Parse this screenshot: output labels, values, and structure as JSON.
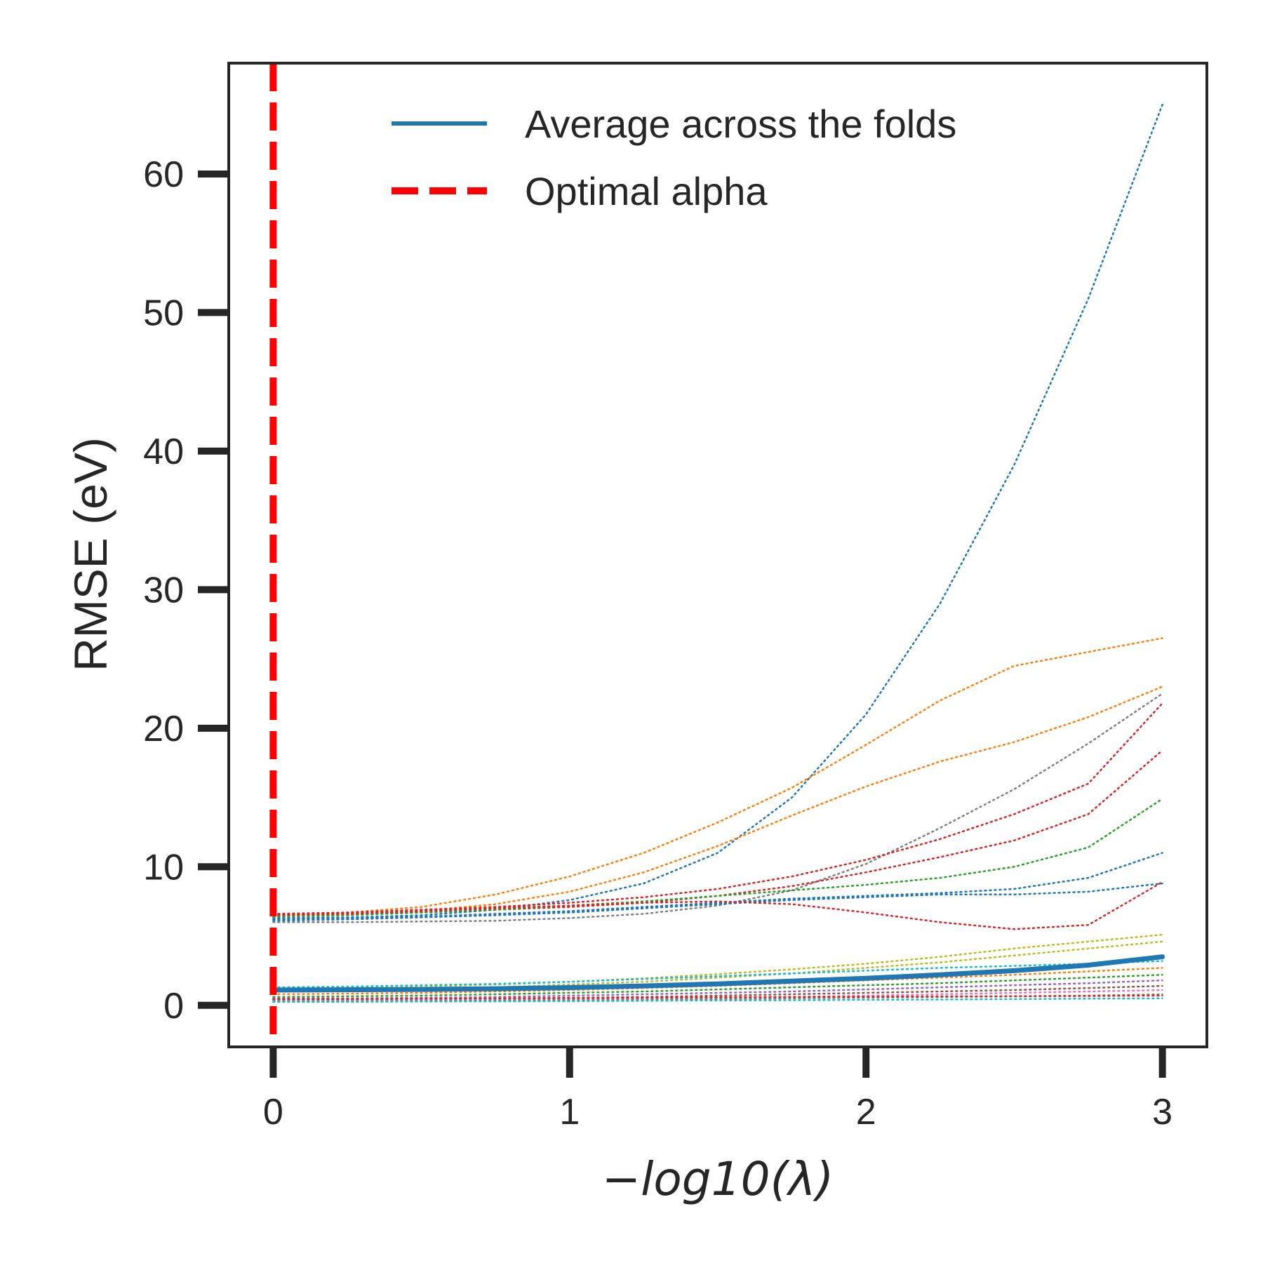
{
  "chart_data": {
    "type": "line",
    "xlabel": "−log10(λ)",
    "ylabel": "RMSE (eV)",
    "xlim": [
      -0.15,
      3.15
    ],
    "ylim": [
      -3,
      68
    ],
    "xticks": [
      0,
      1,
      2,
      3
    ],
    "yticks": [
      0,
      10,
      20,
      30,
      40,
      50,
      60
    ],
    "grid": false,
    "legend_position": "top-center",
    "legend": [
      {
        "label": "Average across the folds",
        "color": "#1f77b4",
        "style": "solid"
      },
      {
        "label": "Optimal alpha",
        "color": "#ff0000",
        "style": "dashed"
      }
    ],
    "optimal_alpha_x": 0,
    "x": [
      0,
      0.25,
      0.5,
      0.75,
      1.0,
      1.25,
      1.5,
      1.75,
      2.0,
      2.25,
      2.5,
      2.75,
      3.0
    ],
    "average": {
      "color": "#1f77b4",
      "values": [
        1.1,
        1.12,
        1.15,
        1.2,
        1.28,
        1.4,
        1.55,
        1.75,
        1.95,
        2.2,
        2.5,
        2.9,
        3.5
      ]
    },
    "folds": [
      {
        "color": "#1f77b4",
        "values": [
          6.3,
          6.35,
          6.5,
          6.9,
          7.6,
          8.8,
          11.0,
          15.0,
          21.0,
          29.0,
          39.0,
          51.0,
          65.0
        ]
      },
      {
        "color": "#ff7f0e",
        "values": [
          6.5,
          6.7,
          7.1,
          8.0,
          9.3,
          11.0,
          13.2,
          15.7,
          18.8,
          22.0,
          24.5,
          25.5,
          26.5
        ]
      },
      {
        "color": "#ff7f0e",
        "values": [
          6.4,
          6.5,
          6.8,
          7.3,
          8.2,
          9.6,
          11.5,
          13.7,
          15.8,
          17.6,
          19.0,
          20.8,
          23.0
        ]
      },
      {
        "color": "#7f7f7f",
        "values": [
          6.0,
          6.0,
          6.05,
          6.1,
          6.3,
          6.6,
          7.2,
          8.3,
          10.2,
          12.8,
          15.6,
          18.9,
          22.5
        ]
      },
      {
        "color": "#d62728",
        "values": [
          6.6,
          6.7,
          6.9,
          7.1,
          7.4,
          7.8,
          8.4,
          9.3,
          10.5,
          12.0,
          13.8,
          16.0,
          21.8
        ]
      },
      {
        "color": "#d62728",
        "values": [
          6.5,
          6.6,
          6.7,
          6.9,
          7.1,
          7.4,
          7.9,
          8.6,
          9.6,
          10.7,
          11.9,
          13.8,
          18.4
        ]
      },
      {
        "color": "#2ca02c",
        "values": [
          6.4,
          6.5,
          6.7,
          6.9,
          7.2,
          7.5,
          7.9,
          8.3,
          8.7,
          9.2,
          10.0,
          11.4,
          14.9
        ]
      },
      {
        "color": "#1f77b4",
        "values": [
          6.2,
          6.3,
          6.4,
          6.6,
          6.8,
          7.1,
          7.4,
          7.7,
          7.9,
          8.1,
          8.4,
          9.2,
          11.0
        ]
      },
      {
        "color": "#1f77b4",
        "values": [
          6.1,
          6.2,
          6.35,
          6.5,
          6.7,
          7.0,
          7.3,
          7.6,
          7.8,
          8.0,
          8.0,
          8.2,
          8.8
        ]
      },
      {
        "color": "#d62728",
        "values": [
          6.5,
          6.6,
          6.8,
          7.0,
          7.2,
          7.4,
          7.5,
          7.3,
          6.7,
          6.0,
          5.5,
          5.8,
          8.9
        ]
      },
      {
        "color": "#bcbd22",
        "values": [
          1.2,
          1.25,
          1.35,
          1.5,
          1.7,
          1.95,
          2.25,
          2.6,
          3.0,
          3.5,
          4.1,
          4.6,
          5.1
        ]
      },
      {
        "color": "#bcbd22",
        "values": [
          1.0,
          1.05,
          1.15,
          1.3,
          1.5,
          1.7,
          2.0,
          2.3,
          2.7,
          3.1,
          3.6,
          4.1,
          4.6
        ]
      },
      {
        "color": "#17becf",
        "values": [
          1.3,
          1.35,
          1.45,
          1.55,
          1.7,
          1.9,
          2.1,
          2.3,
          2.5,
          2.7,
          2.85,
          3.0,
          3.2
        ]
      },
      {
        "color": "#ff7f0e",
        "values": [
          0.8,
          0.85,
          0.9,
          1.0,
          1.1,
          1.25,
          1.4,
          1.6,
          1.8,
          2.0,
          2.2,
          2.45,
          2.7
        ]
      },
      {
        "color": "#2ca02c",
        "values": [
          0.6,
          0.65,
          0.7,
          0.8,
          0.9,
          1.0,
          1.15,
          1.3,
          1.45,
          1.6,
          1.8,
          2.0,
          2.2
        ]
      },
      {
        "color": "#9467bd",
        "values": [
          0.5,
          0.5,
          0.55,
          0.6,
          0.7,
          0.8,
          0.9,
          1.0,
          1.15,
          1.3,
          1.45,
          1.6,
          1.8
        ]
      },
      {
        "color": "#8c564b",
        "values": [
          0.4,
          0.4,
          0.45,
          0.5,
          0.55,
          0.6,
          0.7,
          0.8,
          0.9,
          1.0,
          1.1,
          1.25,
          1.4
        ]
      },
      {
        "color": "#e377c2",
        "values": [
          0.35,
          0.35,
          0.38,
          0.4,
          0.45,
          0.5,
          0.55,
          0.6,
          0.7,
          0.8,
          0.9,
          1.0,
          1.1
        ]
      },
      {
        "color": "#7f7f7f",
        "values": [
          0.3,
          0.3,
          0.32,
          0.35,
          0.38,
          0.4,
          0.45,
          0.5,
          0.55,
          0.6,
          0.65,
          0.7,
          0.8
        ]
      },
      {
        "color": "#17becf",
        "values": [
          0.25,
          0.25,
          0.27,
          0.28,
          0.3,
          0.32,
          0.35,
          0.37,
          0.4,
          0.42,
          0.45,
          0.48,
          0.5
        ]
      },
      {
        "color": "#d62728",
        "values": [
          0.45,
          0.46,
          0.48,
          0.5,
          0.52,
          0.55,
          0.58,
          0.6,
          0.62,
          0.64,
          0.65,
          0.67,
          0.7
        ]
      }
    ]
  }
}
